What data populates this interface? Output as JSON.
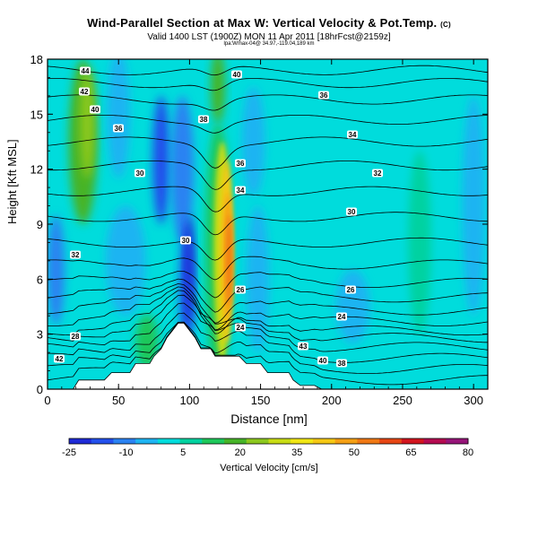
{
  "chart_data": {
    "type": "contour",
    "title": "Wind-Parallel Section at Max W: Vertical Velocity & Pot.Temp.",
    "title_mark": "(C)",
    "subtitle": "Valid 1400 LST (1900Z) MON 11 Apr 2011 [18hrFcst@2159z]",
    "location": "lpa:Wmax-04@ 34.97,-119.04,189 km",
    "xlabel": "Distance [nm]",
    "ylabel": "Height [Kft MSL]",
    "xlim": [
      0,
      310
    ],
    "ylim": [
      0,
      18
    ],
    "x_ticks": [
      "0",
      "50",
      "100",
      "150",
      "200",
      "250",
      "300"
    ],
    "y_ticks": [
      "0",
      "3",
      "6",
      "9",
      "12",
      "15",
      "18"
    ],
    "colorbar": {
      "label": "Vertical Velocity [cm/s]",
      "ticks": [
        "-25",
        "-10",
        "5",
        "20",
        "35",
        "50",
        "65",
        "80"
      ],
      "colors": [
        "#1e2ad6",
        "#2350ec",
        "#2a82f2",
        "#1eb4f2",
        "#00dcdc",
        "#00d2a0",
        "#1ec85a",
        "#46b428",
        "#8cc81e",
        "#c8dc14",
        "#f0e614",
        "#f5c814",
        "#f5a014",
        "#f07814",
        "#e64614",
        "#d2141e",
        "#b40a50",
        "#961478"
      ]
    },
    "isentrope_labels": [
      "44",
      "42",
      "40",
      "36",
      "30",
      "32",
      "28",
      "42",
      "40",
      "38",
      "36",
      "34",
      "30",
      "26",
      "24",
      "43",
      "40",
      "38",
      "36",
      "34",
      "32",
      "30",
      "26",
      "24"
    ],
    "vertical_velocity_max_cm_s": 65,
    "vertical_velocity_min_cm_s": -25,
    "terrain_profile": {
      "x": [
        0,
        18,
        22,
        40,
        45,
        58,
        62,
        72,
        75,
        80,
        84,
        88,
        92,
        96,
        100,
        104,
        108,
        115,
        118,
        135,
        140,
        150,
        155,
        170,
        173,
        178,
        188,
        193,
        200,
        310
      ],
      "height": [
        0,
        0,
        0.5,
        0.5,
        0.9,
        0.9,
        1.4,
        1.4,
        1.8,
        2.2,
        2.8,
        3.2,
        3.6,
        3.6,
        3.2,
        2.8,
        2.2,
        2.2,
        1.8,
        1.8,
        1.4,
        1.4,
        0.9,
        0.9,
        0.5,
        0.2,
        0.2,
        0,
        0,
        0
      ]
    },
    "isentropes_kft": [
      0.5,
      1.1,
      1.7,
      2.3,
      2.8,
      3.2,
      3.7,
      4.3,
      5.0,
      5.8,
      6.8,
      8.0,
      9.4,
      10.8,
      12.2,
      13.5,
      14.7,
      15.8,
      16.7,
      17.4
    ],
    "grid": false
  }
}
